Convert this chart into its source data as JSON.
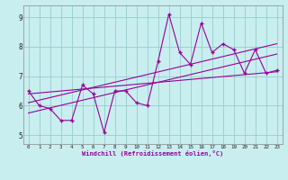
{
  "xlabel": "Windchill (Refroidissement éolien,°C)",
  "xlim": [
    -0.5,
    23.5
  ],
  "ylim": [
    4.7,
    9.4
  ],
  "xticks": [
    0,
    1,
    2,
    3,
    4,
    5,
    6,
    7,
    8,
    9,
    10,
    11,
    12,
    13,
    14,
    15,
    16,
    17,
    18,
    19,
    20,
    21,
    22,
    23
  ],
  "yticks": [
    5,
    6,
    7,
    8,
    9
  ],
  "background_color": "#c8eef0",
  "grid_color": "#99cccc",
  "line_color": "#990099",
  "series1_x": [
    0,
    1,
    2,
    3,
    4,
    5,
    6,
    7,
    8,
    9,
    10,
    11,
    12,
    13,
    14,
    15,
    16,
    17,
    18,
    19,
    20,
    21,
    22,
    23
  ],
  "series1_y": [
    6.5,
    6.0,
    5.9,
    5.5,
    5.5,
    6.7,
    6.4,
    5.1,
    6.5,
    6.5,
    6.1,
    6.0,
    7.5,
    9.1,
    7.8,
    7.4,
    8.8,
    7.8,
    8.1,
    7.9,
    7.1,
    7.9,
    7.1,
    7.2
  ],
  "trend1_x": [
    0,
    23
  ],
  "trend1_y": [
    5.75,
    7.75
  ],
  "trend2_x": [
    0,
    23
  ],
  "trend2_y": [
    6.1,
    8.1
  ],
  "trend3_x": [
    0,
    23
  ],
  "trend3_y": [
    6.4,
    7.15
  ]
}
